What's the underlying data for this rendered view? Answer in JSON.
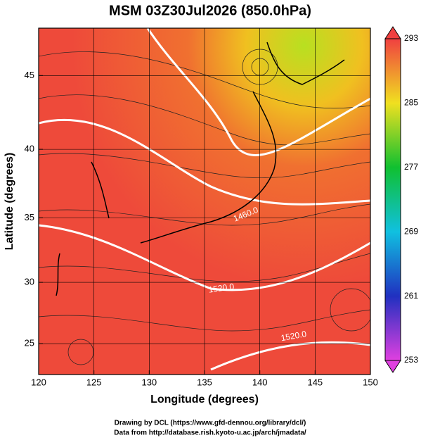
{
  "title": "MSM 03Z30Jul2026 (850.0hPa)",
  "x_axis": {
    "label": "Longitude (degrees)",
    "lim": [
      120,
      150
    ],
    "ticks": [
      120,
      125,
      130,
      135,
      140,
      145,
      150
    ]
  },
  "y_axis": {
    "label": "Latitude  (degrees)",
    "lim": [
      22.4,
      48
    ],
    "ticks": [
      25,
      30,
      35,
      40,
      45
    ]
  },
  "colorbar": {
    "lim": [
      253,
      293
    ],
    "ticks": [
      253,
      261,
      269,
      277,
      285,
      293
    ]
  },
  "contour_labels": [
    "1460.0",
    "1520.0",
    "1520.0"
  ],
  "footer": [
    "Drawing by DCL (https://www.gfd-dennou.org/library/dcl/)",
    "Data from http://database.rish.kyoto-u.ac.jp/arch/jmadata/"
  ]
}
